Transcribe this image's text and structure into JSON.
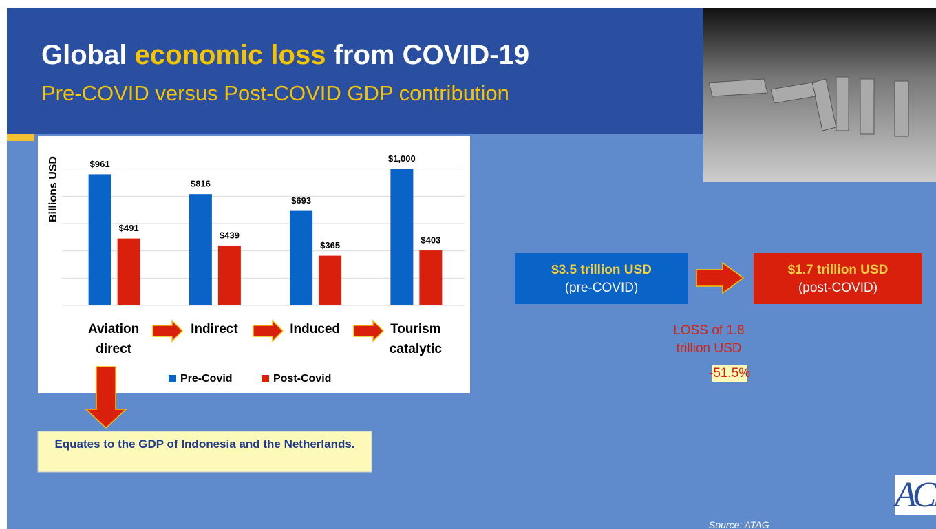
{
  "slide": {
    "title": {
      "lead": "Global",
      "highlight": "economic loss",
      "tail": "from COVID-19"
    },
    "subtitle": "Pre-COVID versus Post-COVID GDP contribution",
    "pre_box": {
      "amount": "$3.5 trillion USD",
      "label": "(pre-COVID)"
    },
    "post_box": {
      "amount": "$1.7 trillion USD",
      "label": "(post-COVID)"
    },
    "loss": {
      "text": "LOSS of 1.8 trillion USD",
      "percent": "-51.5%"
    },
    "note": "Equates to the GDP of Indonesia and the Netherlands.",
    "source": "Source: ATAG",
    "logo": "ACI"
  },
  "chart_data": {
    "type": "bar",
    "ylabel": "Billions USD",
    "categories": [
      "Aviation direct",
      "Indirect",
      "Induced",
      "Tourism catalytic"
    ],
    "series": [
      {
        "name": "Pre-Covid",
        "color": "#0a64c8",
        "values": [
          961,
          816,
          693,
          1000
        ],
        "value_labels": [
          "$961",
          "$816",
          "$693",
          "$1,000"
        ]
      },
      {
        "name": "Post-Covid",
        "color": "#d9200c",
        "values": [
          491,
          439,
          365,
          403
        ],
        "value_labels": [
          "$491",
          "$439",
          "$365",
          "$403"
        ]
      }
    ],
    "ylim": [
      0,
      1200
    ],
    "yticks": [
      0,
      200,
      400,
      600,
      800,
      1000
    ],
    "grid": true
  }
}
